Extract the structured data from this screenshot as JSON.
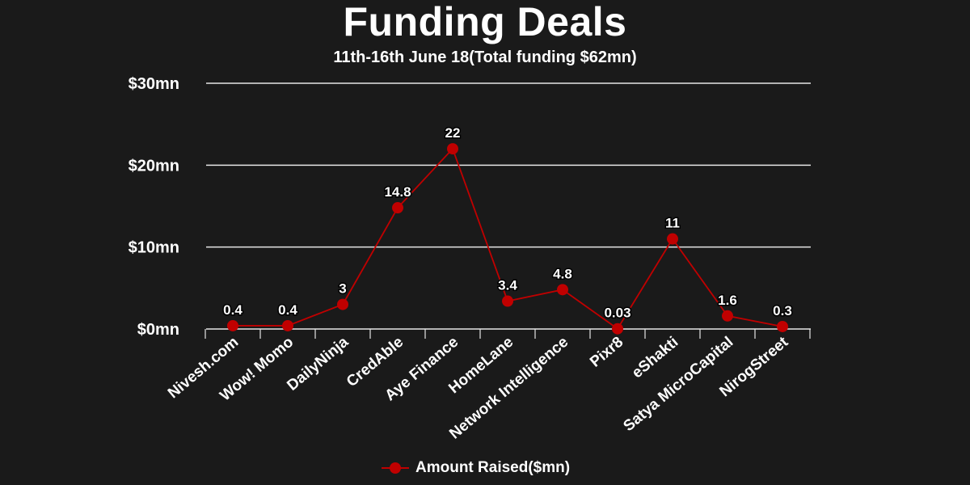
{
  "chart_data": {
    "type": "line",
    "title": "Funding Deals",
    "subtitle": "11th-16th June 18(Total funding $62mn)",
    "categories": [
      "Nivesh.com",
      "Wow! Momo",
      "DailyNinja",
      "CredAble",
      "Aye Finance",
      "HomeLane",
      "Network Intelligence",
      "Pixr8",
      "eShakti",
      "Satya MicroCapital",
      "NirogStreet"
    ],
    "series": [
      {
        "name": "Amount Raised($mn)",
        "values": [
          0.4,
          0.4,
          3,
          14.8,
          22,
          3.4,
          4.8,
          0.03,
          11,
          1.6,
          0.3
        ],
        "labels": [
          "0.4",
          "0.4",
          "3",
          "14.8",
          "22",
          "3.4",
          "4.8",
          "0.03",
          "11",
          "1.6",
          "0.3"
        ]
      }
    ],
    "yticks": [
      "$0mn",
      "$10mn",
      "$20mn",
      "$30mn"
    ],
    "ytick_values": [
      0,
      10,
      20,
      30
    ],
    "ylim": [
      0,
      30
    ],
    "grid": true,
    "legend": "bottom-center",
    "colors": {
      "series": "#c00000",
      "background": "#1a1a1a",
      "grid": "#e6e6e6",
      "text": "#ffffff"
    }
  }
}
